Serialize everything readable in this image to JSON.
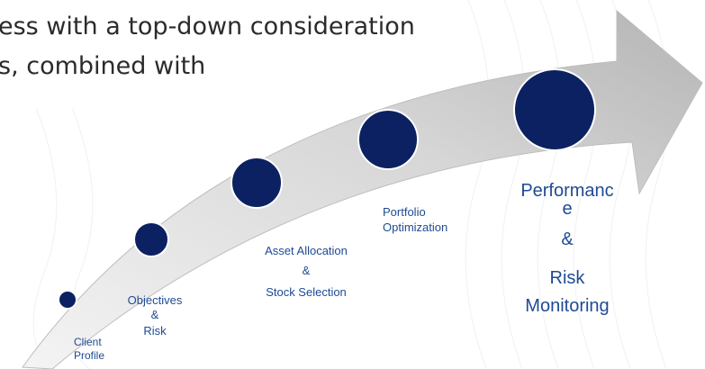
{
  "heading": {
    "lines": [
      "ess with a top-down consideration",
      "s, combined with"
    ]
  },
  "steps": [
    {
      "label": [
        "Client",
        "Profile"
      ]
    },
    {
      "label": [
        "Objectives",
        "&",
        "Risk"
      ]
    },
    {
      "label": [
        "Asset Allocation",
        "&",
        "Stock Selection"
      ]
    },
    {
      "label": [
        "Portfolio",
        "Optimization"
      ]
    },
    {
      "label": [
        "Performanc",
        "e",
        "&",
        "Risk",
        "Monitoring"
      ]
    }
  ]
}
